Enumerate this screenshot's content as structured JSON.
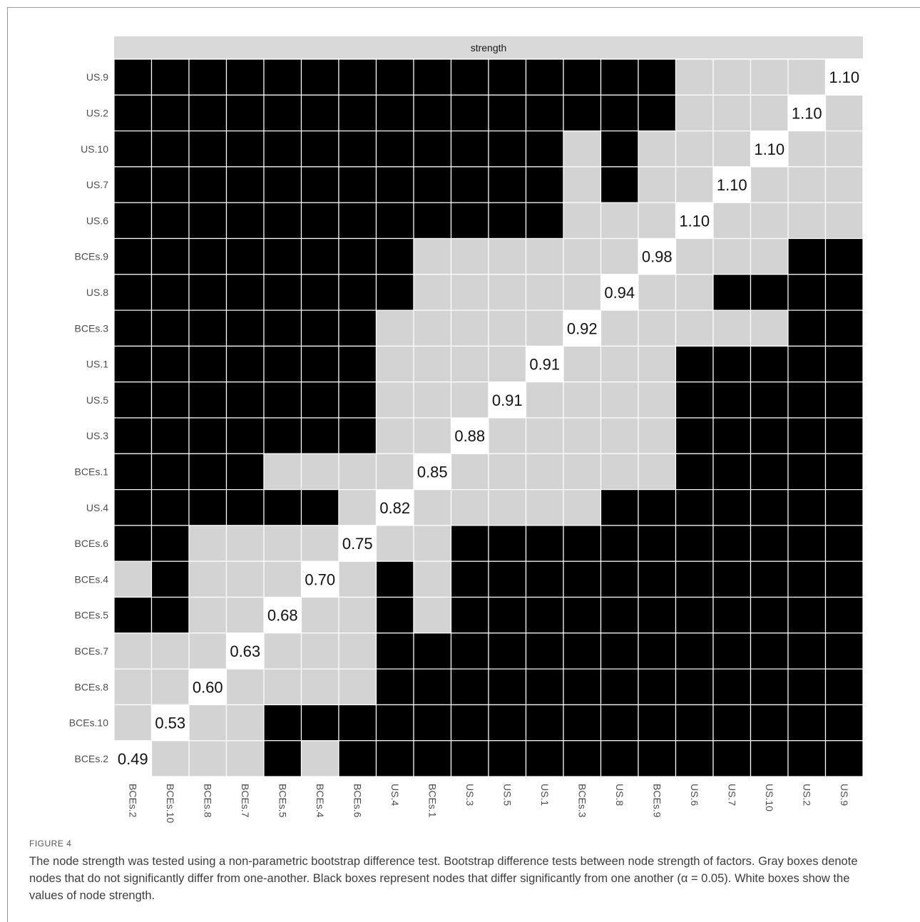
{
  "chart_data": {
    "type": "heatmap",
    "panel_title": "strength",
    "nodes": [
      "BCEs.2",
      "BCEs.10",
      "BCEs.8",
      "BCEs.7",
      "BCEs.5",
      "BCEs.4",
      "BCEs.6",
      "US.4",
      "BCEs.1",
      "US.3",
      "US.5",
      "US.1",
      "BCEs.3",
      "US.8",
      "BCEs.9",
      "US.6",
      "US.7",
      "US.10",
      "US.2",
      "US.9"
    ],
    "strength_values": [
      "0.49",
      "0.53",
      "0.60",
      "0.63",
      "0.68",
      "0.70",
      "0.75",
      "0.82",
      "0.85",
      "0.88",
      "0.91",
      "0.91",
      "0.92",
      "0.94",
      "0.98",
      "1.10",
      "1.10",
      "1.10",
      "1.10",
      "1.10"
    ],
    "legend": {
      "0": "not significantly different (gray)",
      "1": "significantly different (black)"
    },
    "colors": {
      "gray": "#d3d3d3",
      "black": "#000000",
      "diagonal": "#ffffff",
      "strip": "#d9d9d9",
      "grid": "#ffffff"
    },
    "significance_matrix": [
      [
        null,
        0,
        0,
        0,
        1,
        0,
        1,
        1,
        1,
        1,
        1,
        1,
        1,
        1,
        1,
        1,
        1,
        1,
        1,
        1
      ],
      [
        0,
        null,
        0,
        0,
        1,
        1,
        1,
        1,
        1,
        1,
        1,
        1,
        1,
        1,
        1,
        1,
        1,
        1,
        1,
        1
      ],
      [
        0,
        0,
        null,
        0,
        0,
        0,
        0,
        1,
        1,
        1,
        1,
        1,
        1,
        1,
        1,
        1,
        1,
        1,
        1,
        1
      ],
      [
        0,
        0,
        0,
        null,
        0,
        0,
        0,
        1,
        1,
        1,
        1,
        1,
        1,
        1,
        1,
        1,
        1,
        1,
        1,
        1
      ],
      [
        1,
        1,
        0,
        0,
        null,
        0,
        0,
        1,
        0,
        1,
        1,
        1,
        1,
        1,
        1,
        1,
        1,
        1,
        1,
        1
      ],
      [
        0,
        1,
        0,
        0,
        0,
        null,
        0,
        1,
        0,
        1,
        1,
        1,
        1,
        1,
        1,
        1,
        1,
        1,
        1,
        1
      ],
      [
        1,
        1,
        0,
        0,
        0,
        0,
        null,
        0,
        0,
        1,
        1,
        1,
        1,
        1,
        1,
        1,
        1,
        1,
        1,
        1
      ],
      [
        1,
        1,
        1,
        1,
        1,
        1,
        0,
        null,
        0,
        0,
        0,
        0,
        0,
        1,
        1,
        1,
        1,
        1,
        1,
        1
      ],
      [
        1,
        1,
        1,
        1,
        0,
        0,
        0,
        0,
        null,
        0,
        0,
        0,
        0,
        0,
        0,
        1,
        1,
        1,
        1,
        1
      ],
      [
        1,
        1,
        1,
        1,
        1,
        1,
        1,
        0,
        0,
        null,
        0,
        0,
        0,
        0,
        0,
        1,
        1,
        1,
        1,
        1
      ],
      [
        1,
        1,
        1,
        1,
        1,
        1,
        1,
        0,
        0,
        0,
        null,
        0,
        0,
        0,
        0,
        1,
        1,
        1,
        1,
        1
      ],
      [
        1,
        1,
        1,
        1,
        1,
        1,
        1,
        0,
        0,
        0,
        0,
        null,
        0,
        0,
        0,
        1,
        1,
        1,
        1,
        1
      ],
      [
        1,
        1,
        1,
        1,
        1,
        1,
        1,
        0,
        0,
        0,
        0,
        0,
        null,
        0,
        0,
        0,
        0,
        0,
        1,
        1
      ],
      [
        1,
        1,
        1,
        1,
        1,
        1,
        1,
        1,
        0,
        0,
        0,
        0,
        0,
        null,
        0,
        0,
        1,
        1,
        1,
        1
      ],
      [
        1,
        1,
        1,
        1,
        1,
        1,
        1,
        1,
        0,
        0,
        0,
        0,
        0,
        0,
        null,
        0,
        0,
        0,
        1,
        1
      ],
      [
        1,
        1,
        1,
        1,
        1,
        1,
        1,
        1,
        1,
        1,
        1,
        1,
        0,
        0,
        0,
        null,
        0,
        0,
        0,
        0
      ],
      [
        1,
        1,
        1,
        1,
        1,
        1,
        1,
        1,
        1,
        1,
        1,
        1,
        0,
        1,
        0,
        0,
        null,
        0,
        0,
        0
      ],
      [
        1,
        1,
        1,
        1,
        1,
        1,
        1,
        1,
        1,
        1,
        1,
        1,
        0,
        1,
        0,
        0,
        0,
        null,
        0,
        0
      ],
      [
        1,
        1,
        1,
        1,
        1,
        1,
        1,
        1,
        1,
        1,
        1,
        1,
        1,
        1,
        1,
        0,
        0,
        0,
        null,
        0
      ],
      [
        1,
        1,
        1,
        1,
        1,
        1,
        1,
        1,
        1,
        1,
        1,
        1,
        1,
        1,
        1,
        0,
        0,
        0,
        0,
        null
      ]
    ]
  },
  "caption": {
    "label": "FIGURE 4",
    "text": "The node strength was tested using a non-parametric bootstrap difference test. Bootstrap difference tests between node strength of factors. Gray boxes denote nodes that do not significantly differ from one-another. Black boxes represent nodes that differ significantly from one another (α = 0.05). White boxes show the values of node strength."
  }
}
